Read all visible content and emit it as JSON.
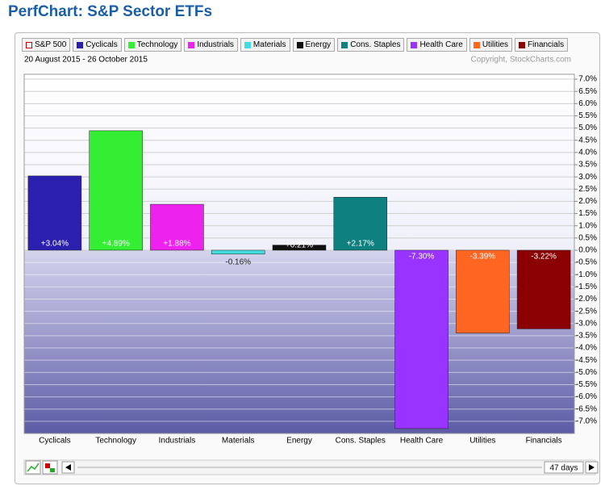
{
  "chart_data": {
    "type": "bar",
    "title": "PerfChart: S&P Sector ETFs",
    "subtitle": "20 August 2015 - 26 October 2015",
    "source": "Copyright, StockCharts.com",
    "benchmark": "S&P 500",
    "period_label": "47 days",
    "categories": [
      "Cyclicals",
      "Technology",
      "Industrials",
      "Materials",
      "Energy",
      "Cons. Staples",
      "Health Care",
      "Utilities",
      "Financials"
    ],
    "values": [
      3.04,
      4.89,
      1.88,
      -0.16,
      0.21,
      2.17,
      -7.3,
      -3.39,
      -3.22
    ],
    "value_labels": [
      "+3.04%",
      "+4.89%",
      "+1.88%",
      "-0.16%",
      "+0.21%",
      "+2.17%",
      "-7.30%",
      "-3.39%",
      "-3.22%"
    ],
    "colors": [
      "#2b1fb0",
      "#33ee33",
      "#ee22ee",
      "#44dddd",
      "#111111",
      "#0e8080",
      "#9933ff",
      "#ff6622",
      "#8b0000"
    ],
    "ylim": [
      -7.5,
      7.2
    ],
    "yticks": [
      {
        "value": 7.0,
        "label": "7.0%"
      },
      {
        "value": 6.5,
        "label": "6.5%"
      },
      {
        "value": 6.0,
        "label": "6.0%"
      },
      {
        "value": 5.5,
        "label": "5.5%"
      },
      {
        "value": 5.0,
        "label": "5.0%"
      },
      {
        "value": 4.5,
        "label": "4.5%"
      },
      {
        "value": 4.0,
        "label": "4.0%"
      },
      {
        "value": 3.5,
        "label": "3.5%"
      },
      {
        "value": 3.0,
        "label": "3.0%"
      },
      {
        "value": 2.5,
        "label": "2.5%"
      },
      {
        "value": 2.0,
        "label": "2.0%"
      },
      {
        "value": 1.5,
        "label": "1.5%"
      },
      {
        "value": 1.0,
        "label": "1.0%"
      },
      {
        "value": 0.5,
        "label": "0.5%"
      },
      {
        "value": 0.0,
        "label": "0.0%"
      },
      {
        "value": -0.5,
        "label": "-0.5%"
      },
      {
        "value": -1.0,
        "label": "-1.0%"
      },
      {
        "value": -1.5,
        "label": "-1.5%"
      },
      {
        "value": -2.0,
        "label": "-2.0%"
      },
      {
        "value": -2.5,
        "label": "-2.5%"
      },
      {
        "value": -3.0,
        "label": "-3.0%"
      },
      {
        "value": -3.5,
        "label": "-3.5%"
      },
      {
        "value": -4.0,
        "label": "-4.0%"
      },
      {
        "value": -4.5,
        "label": "-4.5%"
      },
      {
        "value": -5.0,
        "label": "-5.0%"
      },
      {
        "value": -5.5,
        "label": "-5.5%"
      },
      {
        "value": -6.0,
        "label": "-6.0%"
      },
      {
        "value": -6.5,
        "label": "-6.5%"
      },
      {
        "value": -7.0,
        "label": "-7.0%"
      }
    ],
    "grid": true
  }
}
